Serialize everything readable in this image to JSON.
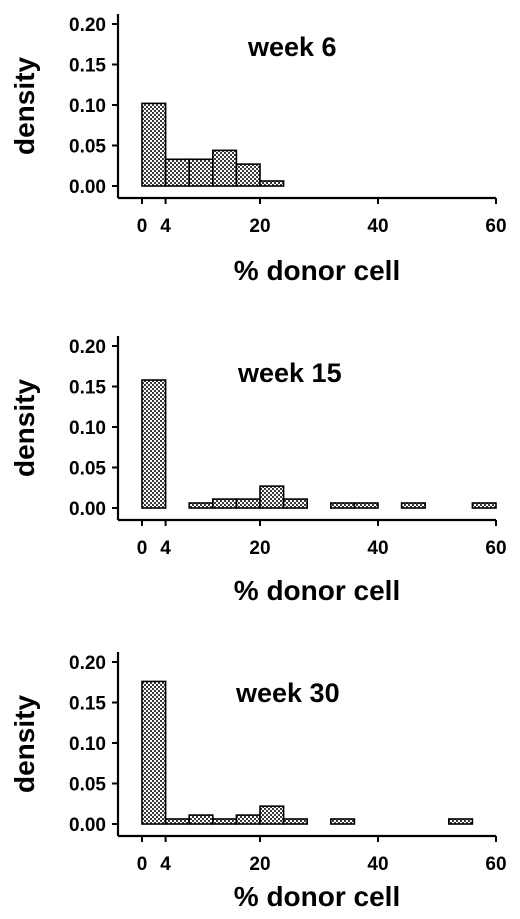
{
  "chart_data": [
    {
      "type": "bar",
      "title": "week 6",
      "xlabel": "% donor cell",
      "ylabel": "density",
      "xlim": [
        0,
        60
      ],
      "ylim": [
        0,
        0.2
      ],
      "xticks": [
        "0",
        "4",
        "20",
        "40",
        "60"
      ],
      "yticks": [
        "0.00",
        "0.05",
        "0.10",
        "0.15",
        "0.20"
      ],
      "bins": [
        {
          "x0": 0,
          "x1": 4,
          "value": 0.102
        },
        {
          "x0": 4,
          "x1": 8,
          "value": 0.033
        },
        {
          "x0": 8,
          "x1": 12,
          "value": 0.033
        },
        {
          "x0": 12,
          "x1": 16,
          "value": 0.044
        },
        {
          "x0": 16,
          "x1": 20,
          "value": 0.027
        },
        {
          "x0": 20,
          "x1": 24,
          "value": 0.005
        }
      ]
    },
    {
      "type": "bar",
      "title": "week 15",
      "xlabel": "% donor cell",
      "ylabel": "density",
      "xlim": [
        0,
        60
      ],
      "ylim": [
        0,
        0.2
      ],
      "xticks": [
        "0",
        "4",
        "20",
        "40",
        "60"
      ],
      "yticks": [
        "0.00",
        "0.05",
        "0.10",
        "0.15",
        "0.20"
      ],
      "bins": [
        {
          "x0": 0,
          "x1": 4,
          "value": 0.158
        },
        {
          "x0": 8,
          "x1": 12,
          "value": 0.005
        },
        {
          "x0": 12,
          "x1": 16,
          "value": 0.011
        },
        {
          "x0": 16,
          "x1": 20,
          "value": 0.011
        },
        {
          "x0": 20,
          "x1": 24,
          "value": 0.027
        },
        {
          "x0": 24,
          "x1": 28,
          "value": 0.011
        },
        {
          "x0": 32,
          "x1": 36,
          "value": 0.005
        },
        {
          "x0": 36,
          "x1": 40,
          "value": 0.005
        },
        {
          "x0": 44,
          "x1": 48,
          "value": 0.005
        },
        {
          "x0": 56,
          "x1": 60,
          "value": 0.005
        }
      ]
    },
    {
      "type": "bar",
      "title": "week 30",
      "xlabel": "% donor cell",
      "ylabel": "density",
      "xlim": [
        0,
        60
      ],
      "ylim": [
        0,
        0.2
      ],
      "xticks": [
        "0",
        "4",
        "20",
        "40",
        "60"
      ],
      "yticks": [
        "0.00",
        "0.05",
        "0.10",
        "0.15",
        "0.20"
      ],
      "bins": [
        {
          "x0": 0,
          "x1": 4,
          "value": 0.176
        },
        {
          "x0": 4,
          "x1": 8,
          "value": 0.005
        },
        {
          "x0": 8,
          "x1": 12,
          "value": 0.011
        },
        {
          "x0": 12,
          "x1": 16,
          "value": 0.005
        },
        {
          "x0": 16,
          "x1": 20,
          "value": 0.011
        },
        {
          "x0": 20,
          "x1": 24,
          "value": 0.022
        },
        {
          "x0": 24,
          "x1": 28,
          "value": 0.005
        },
        {
          "x0": 32,
          "x1": 36,
          "value": 0.005
        },
        {
          "x0": 52,
          "x1": 56,
          "value": 0.005
        }
      ]
    }
  ]
}
